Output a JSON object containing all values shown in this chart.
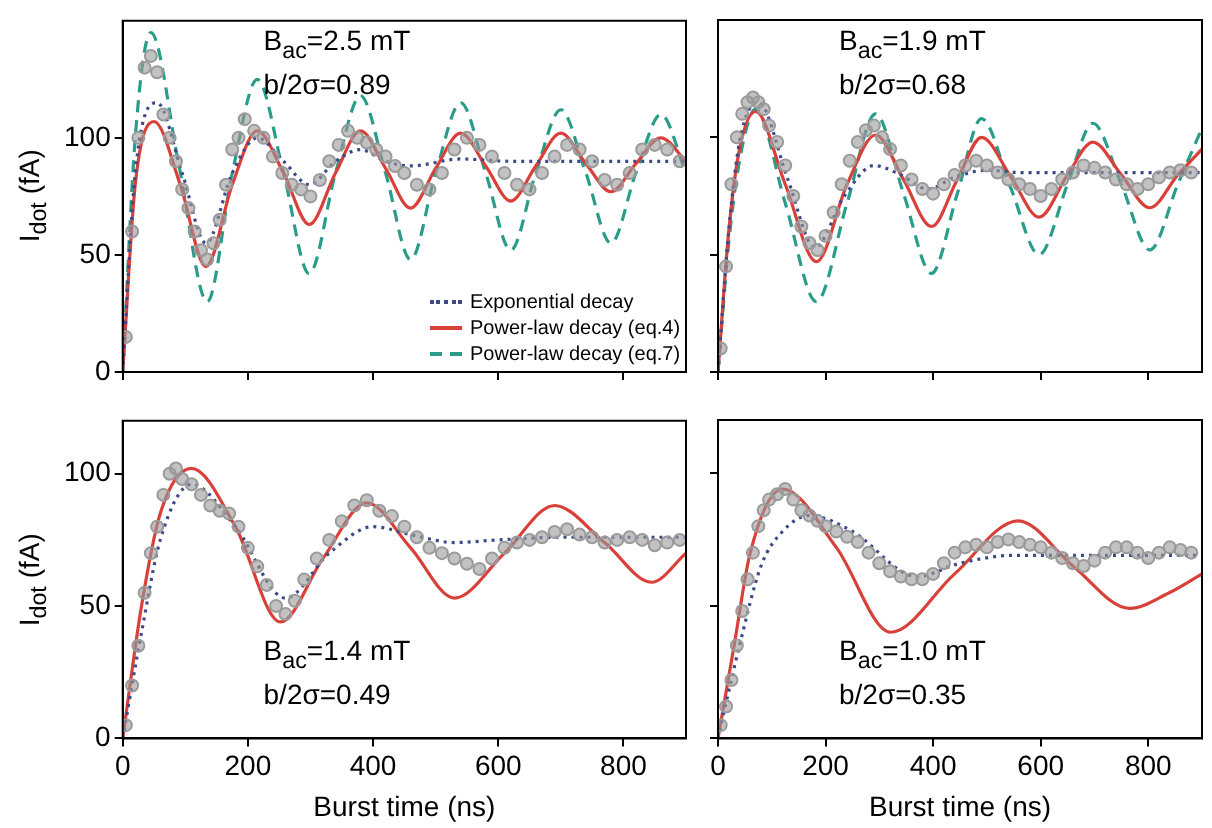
{
  "chart_data": [
    {
      "type": "line",
      "ylabel": "I$_{dot}$ (fA)",
      "xlim": [
        0,
        900
      ],
      "xticks": [
        0,
        200,
        400,
        600,
        800
      ],
      "ylim": [
        0,
        150
      ],
      "yticks": [
        0,
        50,
        100
      ],
      "tick_labels": "y",
      "legend": "bottom right",
      "annotations": [
        "B$_{ac}$=2.5 mT",
        "b/2σ=0.89"
      ],
      "series": [
        {
          "type": "scatter",
          "color": "#9a9a9a",
          "marker": "circle",
          "x": [
            5,
            15,
            25,
            35,
            45,
            55,
            65,
            75,
            85,
            95,
            105,
            115,
            125,
            135,
            145,
            155,
            165,
            175,
            185,
            195,
            210,
            225,
            240,
            255,
            270,
            285,
            300,
            315,
            330,
            345,
            360,
            375,
            390,
            405,
            420,
            435,
            450,
            470,
            490,
            510,
            530,
            550,
            570,
            590,
            610,
            630,
            650,
            670,
            690,
            710,
            730,
            750,
            770,
            790,
            810,
            830,
            850,
            870,
            890
          ],
          "values": [
            15,
            60,
            100,
            130,
            135,
            128,
            110,
            100,
            90,
            78,
            70,
            60,
            52,
            48,
            55,
            65,
            80,
            95,
            100,
            108,
            103,
            100,
            92,
            85,
            80,
            78,
            75,
            82,
            90,
            97,
            103,
            100,
            98,
            95,
            92,
            88,
            85,
            80,
            78,
            85,
            95,
            100,
            97,
            92,
            85,
            80,
            78,
            85,
            92,
            97,
            95,
            90,
            82,
            80,
            85,
            95,
            97,
            95,
            90
          ]
        },
        {
          "name": "Exponential decay",
          "color": "#3c4a8c",
          "line_style": "dotted",
          "marker": "none",
          "x": [
            0,
            20,
            55,
            95,
            133,
            175,
            215,
            257,
            298,
            340,
            380,
            420,
            460,
            540,
            620,
            700,
            780,
            900
          ],
          "values": [
            0,
            85,
            115,
            85,
            55,
            85,
            100,
            90,
            80,
            90,
            95,
            90,
            88,
            91,
            90,
            90,
            90,
            90
          ]
        },
        {
          "name": "Power-law decay (eq.4)",
          "color": "#d9403a",
          "line_style": "solid",
          "marker": "none",
          "x": [
            0,
            20,
            50,
            92,
            133,
            175,
            215,
            257,
            298,
            340,
            380,
            420,
            460,
            500,
            540,
            580,
            620,
            660,
            700,
            740,
            780,
            820,
            860,
            900
          ],
          "values": [
            0,
            80,
            107,
            80,
            45,
            80,
            103,
            85,
            63,
            85,
            103,
            87,
            70,
            87,
            102,
            88,
            73,
            88,
            102,
            89,
            77,
            89,
            100,
            90
          ]
        },
        {
          "name": "Power-law decay (eq.7)",
          "color": "#2a9d8a",
          "line_style": "dashed",
          "marker": "none",
          "x": [
            0,
            20,
            45,
            90,
            135,
            175,
            215,
            257,
            298,
            340,
            380,
            420,
            460,
            500,
            540,
            580,
            620,
            660,
            700,
            740,
            780,
            820,
            860,
            900
          ],
          "values": [
            0,
            100,
            145,
            88,
            30,
            85,
            125,
            85,
            42,
            85,
            118,
            85,
            48,
            85,
            115,
            85,
            52,
            85,
            112,
            85,
            55,
            85,
            110,
            85
          ]
        }
      ]
    },
    {
      "type": "line",
      "xlim": [
        0,
        900
      ],
      "xticks": [
        0,
        200,
        400,
        600,
        800
      ],
      "ylim": [
        0,
        150
      ],
      "yticks": [
        0,
        50,
        100
      ],
      "tick_labels": false,
      "annotations": [
        "B$_{ac}$=1.9 mT",
        "b/2σ=0.68"
      ],
      "series": [
        {
          "type": "scatter",
          "color": "#9a9a9a",
          "marker": "circle",
          "x": [
            5,
            15,
            25,
            35,
            45,
            55,
            65,
            75,
            85,
            95,
            110,
            125,
            140,
            155,
            170,
            185,
            200,
            215,
            230,
            245,
            260,
            275,
            290,
            305,
            320,
            340,
            360,
            380,
            400,
            420,
            440,
            460,
            480,
            500,
            520,
            540,
            560,
            580,
            600,
            620,
            640,
            660,
            680,
            700,
            720,
            740,
            760,
            780,
            800,
            820,
            840,
            860,
            880
          ],
          "values": [
            10,
            45,
            80,
            100,
            110,
            115,
            117,
            115,
            112,
            105,
            98,
            88,
            75,
            62,
            55,
            52,
            58,
            68,
            80,
            90,
            98,
            103,
            105,
            100,
            95,
            88,
            82,
            78,
            76,
            80,
            84,
            88,
            90,
            88,
            85,
            82,
            80,
            78,
            75,
            78,
            82,
            85,
            88,
            87,
            85,
            82,
            80,
            78,
            80,
            83,
            85,
            86,
            85
          ]
        },
        {
          "color": "#3c4a8c",
          "line_style": "dotted",
          "marker": "none",
          "x": [
            0,
            20,
            40,
            75,
            130,
            180,
            235,
            290,
            340,
            390,
            440,
            500,
            560,
            650,
            750,
            900
          ],
          "values": [
            0,
            60,
            98,
            115,
            82,
            53,
            75,
            88,
            84,
            78,
            83,
            86,
            85,
            85,
            85,
            85
          ]
        },
        {
          "color": "#d9403a",
          "line_style": "solid",
          "marker": "none",
          "x": [
            0,
            20,
            40,
            70,
            125,
            183,
            240,
            293,
            345,
            397,
            445,
            490,
            545,
            597,
            650,
            697,
            750,
            803,
            855,
            900
          ],
          "values": [
            0,
            60,
            95,
            111,
            80,
            47,
            80,
            101,
            82,
            62,
            82,
            100,
            83,
            66,
            84,
            98,
            84,
            70,
            84,
            95
          ]
        },
        {
          "color": "#2a9d8a",
          "line_style": "dashed",
          "marker": "none",
          "x": [
            0,
            20,
            40,
            70,
            125,
            183,
            240,
            293,
            345,
            397,
            445,
            490,
            545,
            597,
            650,
            697,
            750,
            803,
            855,
            900
          ],
          "values": [
            0,
            55,
            90,
            112,
            72,
            30,
            72,
            110,
            76,
            42,
            76,
            108,
            78,
            50,
            80,
            106,
            80,
            52,
            80,
            104
          ]
        }
      ]
    },
    {
      "type": "line",
      "xlabel": "Burst time (ns)",
      "ylabel": "I$_{dot}$ (fA)",
      "xlim": [
        0,
        900
      ],
      "xticks": [
        0,
        200,
        400,
        600,
        800
      ],
      "ylim": [
        0,
        120
      ],
      "yticks": [
        0,
        50,
        100
      ],
      "annotations": [
        "B$_{ac}$=1.4 mT",
        "b/2σ=0.49"
      ],
      "series": [
        {
          "type": "scatter",
          "color": "#9a9a9a",
          "marker": "circle",
          "x": [
            5,
            15,
            25,
            35,
            45,
            55,
            65,
            75,
            85,
            95,
            110,
            125,
            140,
            155,
            170,
            185,
            200,
            215,
            230,
            245,
            260,
            275,
            290,
            310,
            330,
            350,
            370,
            390,
            410,
            430,
            450,
            470,
            490,
            510,
            530,
            550,
            570,
            590,
            610,
            630,
            650,
            670,
            690,
            710,
            730,
            750,
            770,
            790,
            810,
            830,
            850,
            870,
            890
          ],
          "values": [
            5,
            20,
            35,
            55,
            70,
            80,
            92,
            100,
            102,
            98,
            96,
            92,
            88,
            86,
            85,
            80,
            72,
            65,
            58,
            50,
            47,
            52,
            60,
            68,
            75,
            82,
            88,
            90,
            86,
            84,
            80,
            76,
            72,
            70,
            68,
            66,
            64,
            68,
            72,
            74,
            75,
            76,
            78,
            79,
            77,
            76,
            74,
            75,
            76,
            75,
            73,
            74,
            75
          ]
        },
        {
          "color": "#3c4a8c",
          "line_style": "dotted",
          "marker": "none",
          "x": [
            0,
            30,
            60,
            110,
            180,
            260,
            330,
            400,
            460,
            530,
            600,
            700,
            800,
            900
          ],
          "values": [
            0,
            40,
            75,
            96,
            80,
            53,
            70,
            80,
            77,
            74,
            75,
            76,
            76,
            76
          ]
        },
        {
          "color": "#d9403a",
          "line_style": "solid",
          "marker": "none",
          "x": [
            0,
            30,
            60,
            110,
            180,
            252,
            320,
            390,
            460,
            530,
            610,
            690,
            770,
            845,
            900
          ],
          "values": [
            0,
            50,
            85,
            102,
            80,
            44,
            68,
            89,
            72,
            53,
            70,
            88,
            74,
            59,
            70
          ]
        }
      ]
    },
    {
      "type": "line",
      "xlabel": "Burst time (ns)",
      "xlim": [
        0,
        900
      ],
      "xticks": [
        0,
        200,
        400,
        600,
        800
      ],
      "ylim": [
        0,
        120
      ],
      "yticks": [
        0,
        50,
        100
      ],
      "tick_labels": "x",
      "annotations": [
        "B$_{ac}$=1.0 mT",
        "b/2σ=0.35"
      ],
      "series": [
        {
          "type": "scatter",
          "color": "#9a9a9a",
          "marker": "circle",
          "x": [
            5,
            15,
            25,
            35,
            45,
            55,
            65,
            75,
            85,
            95,
            110,
            125,
            140,
            155,
            170,
            185,
            200,
            220,
            240,
            260,
            280,
            300,
            320,
            340,
            360,
            380,
            400,
            420,
            440,
            460,
            480,
            500,
            520,
            540,
            560,
            580,
            600,
            620,
            640,
            660,
            680,
            700,
            720,
            740,
            760,
            780,
            800,
            820,
            840,
            860,
            880
          ],
          "values": [
            5,
            12,
            22,
            35,
            48,
            60,
            70,
            80,
            86,
            90,
            92,
            94,
            90,
            86,
            84,
            82,
            80,
            78,
            76,
            74,
            70,
            66,
            63,
            61,
            60,
            60,
            62,
            66,
            70,
            72,
            73,
            72,
            74,
            75,
            74,
            73,
            72,
            70,
            68,
            66,
            65,
            67,
            70,
            72,
            72,
            70,
            68,
            70,
            72,
            71,
            70
          ]
        },
        {
          "color": "#3c4a8c",
          "line_style": "dotted",
          "marker": "none",
          "x": [
            0,
            40,
            80,
            120,
            170,
            250,
            370,
            450,
            550,
            700,
            900
          ],
          "values": [
            0,
            35,
            65,
            78,
            84,
            78,
            61,
            66,
            69,
            69,
            69
          ]
        },
        {
          "color": "#d9403a",
          "line_style": "solid",
          "marker": "none",
          "x": [
            0,
            30,
            60,
            120,
            220,
            321,
            440,
            558,
            660,
            765,
            840,
            900
          ],
          "values": [
            0,
            35,
            70,
            94,
            72,
            40,
            62,
            82,
            65,
            49,
            55,
            62
          ]
        }
      ]
    }
  ]
}
